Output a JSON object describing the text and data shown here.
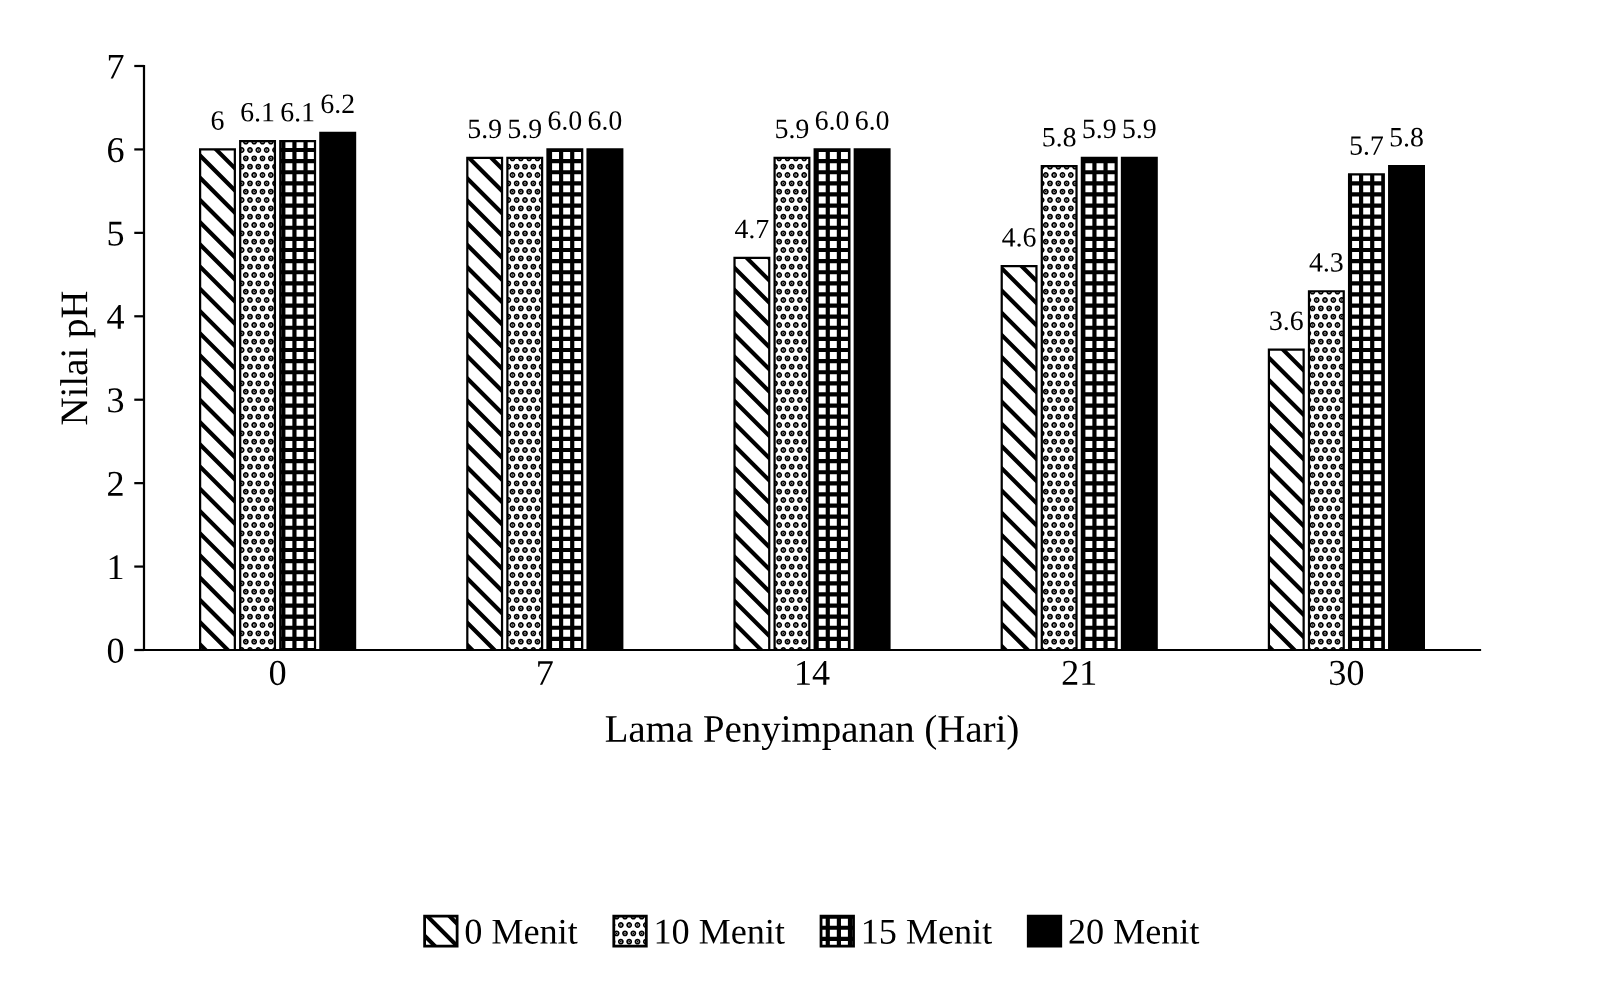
{
  "chart_data": {
    "type": "bar",
    "xlabel": "Lama Penyimpanan (Hari)",
    "ylabel": "Nilai pH",
    "categories": [
      "0",
      "7",
      "14",
      "21",
      "30"
    ],
    "series": [
      {
        "name": "0 Menit",
        "color": "#000000",
        "values": [
          6,
          5.9,
          4.7,
          4.6,
          3.6
        ],
        "value_labels": [
          "6",
          "5.9",
          "4.7",
          "4.6",
          "3.6"
        ]
      },
      {
        "name": "10 Menit",
        "color": "#000000",
        "values": [
          6.1,
          5.9,
          5.9,
          5.8,
          4.3
        ],
        "value_labels": [
          "6.1",
          "5.9",
          "5.9",
          "5.8",
          "4.3"
        ]
      },
      {
        "name": "15 Menit",
        "color": "#000000",
        "values": [
          6.1,
          6.0,
          6.0,
          5.9,
          5.7
        ],
        "value_labels": [
          "6.1",
          "6.0",
          "6.0",
          "5.9",
          "5.7"
        ]
      },
      {
        "name": "20 Menit",
        "color": "#000000",
        "values": [
          6.2,
          6.0,
          6.0,
          5.9,
          5.8
        ],
        "value_labels": [
          "6.2",
          "6.0",
          "6.0",
          "5.9",
          "5.8"
        ]
      }
    ],
    "ylim": [
      0,
      7
    ],
    "yticks": [
      0,
      1,
      2,
      3,
      4,
      5,
      6,
      7
    ],
    "grid": false,
    "legend": "bottom"
  }
}
